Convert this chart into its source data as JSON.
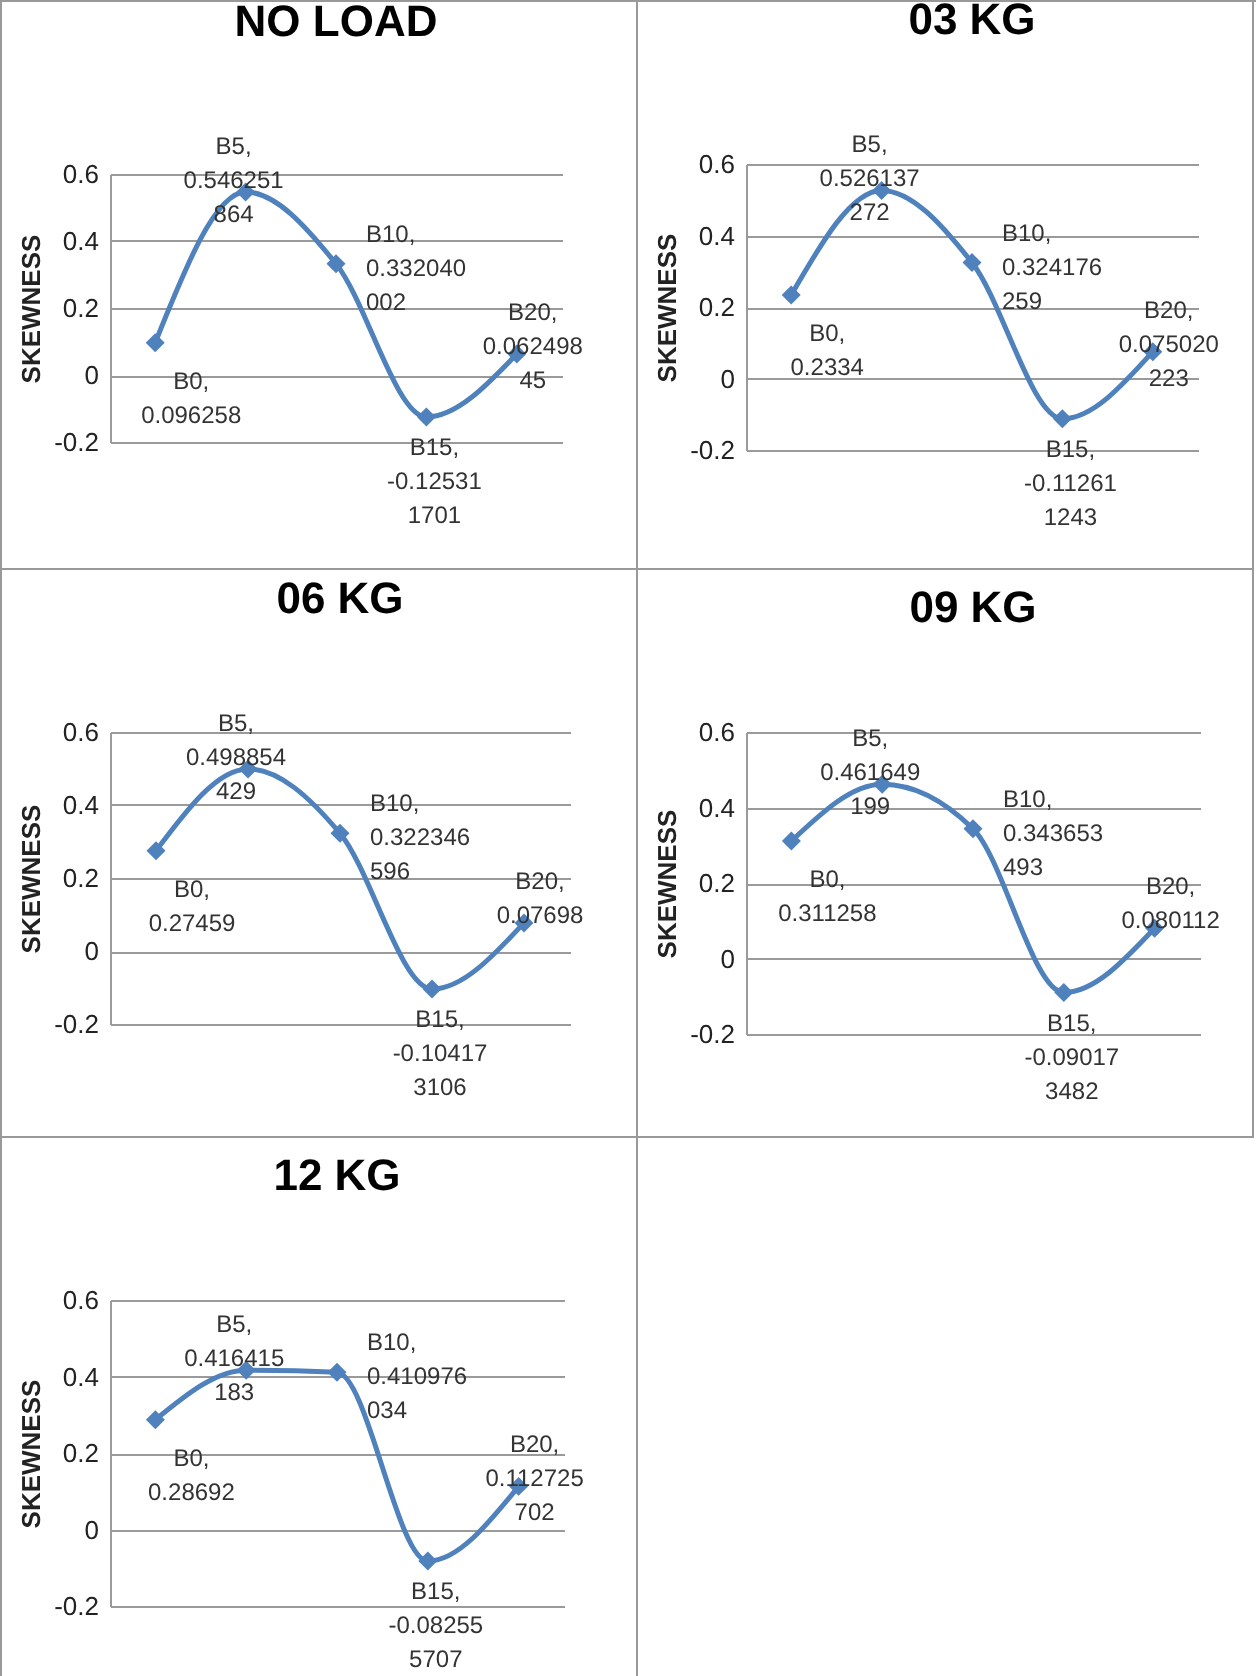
{
  "chart_data": [
    {
      "type": "line",
      "title": "NO LOAD",
      "ylabel": "SKEWNESS",
      "categories": [
        null,
        null,
        null,
        null,
        null
      ],
      "series": [
        {
          "color": "#4f81bd",
          "values": [
            0.096258,
            0.546251864,
            0.332040002,
            -0.125311701,
            0.06249845
          ],
          "value_labels": [
            "B0, 0.096258",
            "B5, 0.546251864",
            "B10, 0.332040002",
            "B15, -0.125311701",
            "B20, 0.06249845"
          ]
        }
      ],
      "ylim": [
        -0.2,
        0.6
      ],
      "yticks": [
        -0.2,
        0,
        0.2,
        0.4,
        0.6
      ],
      "grid": "y",
      "marker": "diamond",
      "tick_labels": "y"
    },
    {
      "type": "line",
      "title": "03 KG",
      "ylabel": "SKEWNESS",
      "categories": [
        null,
        null,
        null,
        null,
        null
      ],
      "series": [
        {
          "color": "#4f81bd",
          "values": [
            0.2334,
            0.526137272,
            0.324176259,
            -0.112611243,
            0.075020223
          ],
          "value_labels": [
            "B0, 0.2334",
            "B5, 0.526137272",
            "B10, 0.324176259",
            "B15, -0.112611243",
            "B20, 0.075020223"
          ]
        }
      ],
      "ylim": [
        -0.2,
        0.6
      ],
      "yticks": [
        -0.2,
        0,
        0.2,
        0.4,
        0.6
      ],
      "grid": "y",
      "marker": "diamond",
      "tick_labels": "y"
    },
    {
      "type": "line",
      "title": "06 KG",
      "ylabel": "SKEWNESS",
      "categories": [
        null,
        null,
        null,
        null,
        null
      ],
      "series": [
        {
          "color": "#4f81bd",
          "values": [
            0.27459,
            0.498854429,
            0.322346596,
            -0.104173106,
            0.07698
          ],
          "value_labels": [
            "B0, 0.27459",
            "B5, 0.498854429",
            "B10, 0.322346596",
            "B15, -0.104173106",
            "B20, 0.07698"
          ]
        }
      ],
      "ylim": [
        -0.2,
        0.6
      ],
      "yticks": [
        -0.2,
        0,
        0.2,
        0.4,
        0.6
      ],
      "grid": "y",
      "marker": "diamond",
      "tick_labels": "y"
    },
    {
      "type": "line",
      "title": "09 KG",
      "ylabel": "SKEWNESS",
      "categories": [
        null,
        null,
        null,
        null,
        null
      ],
      "series": [
        {
          "color": "#4f81bd",
          "values": [
            0.311258,
            0.461649199,
            0.343653493,
            -0.090173482,
            0.080112
          ],
          "value_labels": [
            "B0, 0.311258",
            "B5, 0.461649199",
            "B10, 0.343653493",
            "B15, -0.090173482",
            "B20, 0.080112"
          ]
        }
      ],
      "ylim": [
        -0.2,
        0.6
      ],
      "yticks": [
        -0.2,
        0,
        0.2,
        0.4,
        0.6
      ],
      "grid": "y",
      "marker": "diamond",
      "tick_labels": "y"
    },
    {
      "type": "line",
      "title": "12 KG",
      "ylabel": "SKEWNESS",
      "categories": [
        null,
        null,
        null,
        null,
        null
      ],
      "series": [
        {
          "color": "#4f81bd",
          "values": [
            0.28692,
            0.416415183,
            0.410976034,
            -0.082555707,
            0.112725702
          ],
          "value_labels": [
            "B0, 0.28692",
            "B5, 0.416415183",
            "B10, 0.410976034",
            "B15, -0.082555707",
            "B20, 0.112725702"
          ]
        }
      ],
      "ylim": [
        -0.2,
        0.6
      ],
      "yticks": [
        -0.2,
        0,
        0.2,
        0.4,
        0.6
      ],
      "grid": "y",
      "marker": "diamond",
      "tick_labels": "y"
    }
  ]
}
